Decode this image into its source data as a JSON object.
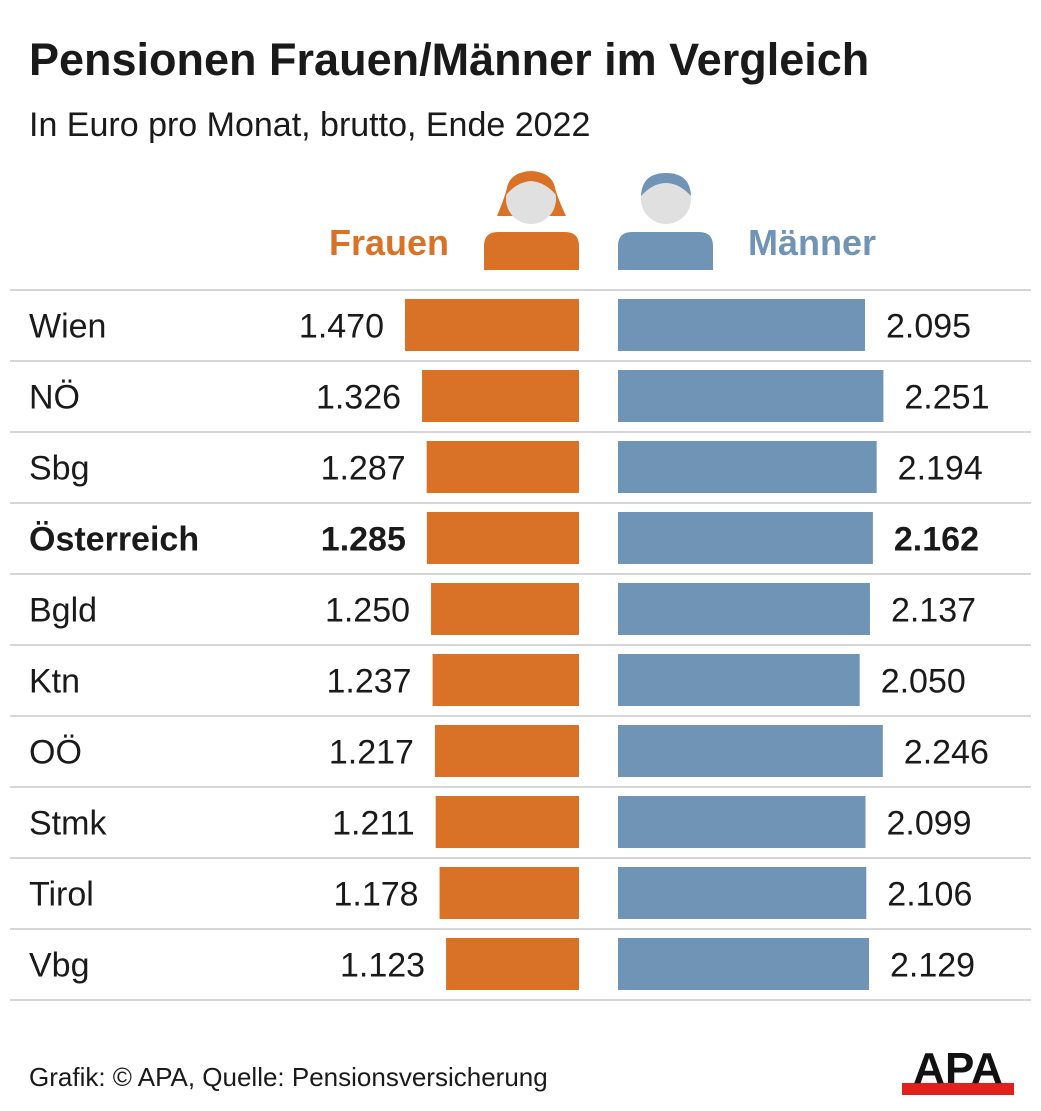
{
  "title": "Pensionen Frauen/Männer im Vergleich",
  "subtitle": "In Euro pro Monat, brutto, Ende 2022",
  "footer": "Grafik: © APA, Quelle: Pensionsversicherung",
  "logo_text": "APA",
  "icons": {
    "women": "woman-icon",
    "men": "man-icon",
    "logo": "apa-logo"
  },
  "colors": {
    "frauen": "#d97227",
    "maenner": "#6f94b6",
    "face": "#e0e0e0",
    "divider": "#d6d6d6",
    "logo_red": "#e2201c"
  },
  "chart_data": {
    "type": "bar",
    "orientation": "horizontal-butterfly",
    "highlight_category": "Österreich",
    "categories": [
      "Wien",
      "NÖ",
      "Sbg",
      "Österreich",
      "Bgld",
      "Ktn",
      "OÖ",
      "Stmk",
      "Tirol",
      "Vbg"
    ],
    "series": [
      {
        "name": "Frauen",
        "values": [
          1470,
          1326,
          1287,
          1285,
          1250,
          1237,
          1217,
          1211,
          1178,
          1123
        ],
        "labels": [
          "1.470",
          "1.326",
          "1.287",
          "1.285",
          "1.250",
          "1.237",
          "1.217",
          "1.211",
          "1.178",
          "1.123"
        ]
      },
      {
        "name": "Männer",
        "values": [
          2095,
          2251,
          2194,
          2162,
          2137,
          2050,
          2246,
          2099,
          2106,
          2129
        ],
        "labels": [
          "2.095",
          "2.251",
          "2.194",
          "2.162",
          "2.137",
          "2.050",
          "2.246",
          "2.099",
          "2.106",
          "2.129"
        ]
      }
    ]
  }
}
